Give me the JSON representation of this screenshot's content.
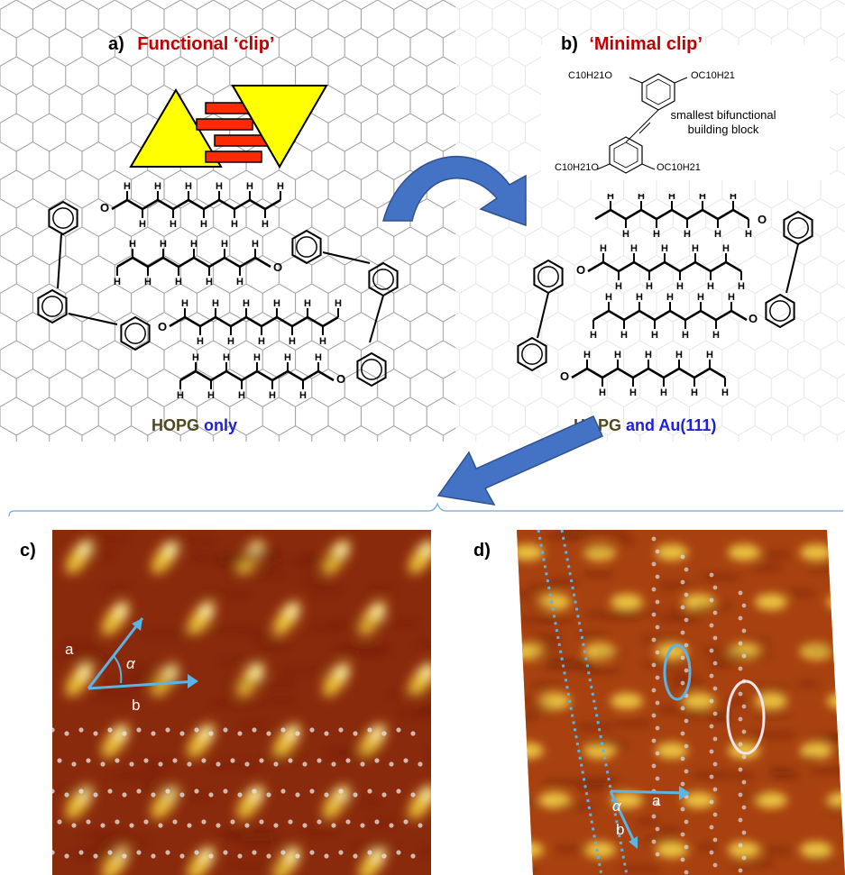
{
  "panel_a": {
    "letter": "a)",
    "title": "Functional ‘clip’",
    "substrate_main": "HOPG",
    "substrate_extra": "only"
  },
  "panel_b": {
    "letter": "b)",
    "title": "‘Minimal clip’",
    "substrate_main": "HOPG",
    "substrate_extra": "and Au(111)",
    "formula_tl": "C10H21O",
    "formula_tr": "OC10H21",
    "formula_bl": "C10H21O",
    "formula_br": "OC10H21",
    "caption_line1": "smallest bifunctional",
    "caption_line2": "building block"
  },
  "panel_c": {
    "letter": "c)",
    "vec_a": "a",
    "vec_b": "b",
    "angle": "α"
  },
  "panel_d": {
    "letter": "d)",
    "vec_a": "a",
    "vec_b": "b",
    "angle": "α"
  },
  "atom_label": "H",
  "oxygen_label": "O",
  "colors": {
    "title_red": "#c00000",
    "substrate_blue": "#1f1fd6",
    "hopg_olive": "#4e4a1e",
    "arrow_blue": "#4472c4",
    "triangle_yellow": "#ffff00",
    "brick_red": "#ff2a00",
    "vector_cyan": "#5ab4e6"
  }
}
